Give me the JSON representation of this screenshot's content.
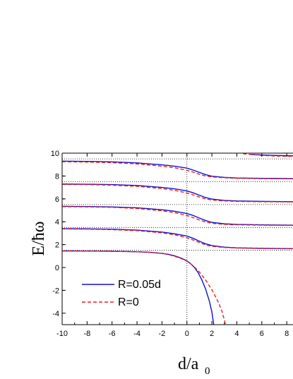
{
  "chart_data": {
    "type": "line",
    "ylabel": "E/ħω",
    "xlabel_main": "d/a",
    "xlabel_sub": "0",
    "xlim": [
      -10,
      8.5
    ],
    "ylim": [
      -5,
      10
    ],
    "x_ticks": [
      -10,
      -8,
      -6,
      -4,
      -2,
      0,
      2,
      4,
      6,
      8
    ],
    "y_ticks": [
      -4,
      -2,
      0,
      2,
      4,
      6,
      8,
      10
    ],
    "reference_lines": {
      "vertical_x": 0,
      "horizontal_y": [
        1.5,
        3.5,
        5.5,
        7.5,
        9.5
      ],
      "style": "dotted"
    },
    "series": [
      {
        "name": "R=0.05d",
        "color": "#1010d0",
        "dash": "solid",
        "branches": [
          [
            [
              -10,
              1.45
            ],
            [
              -8,
              1.44
            ],
            [
              -6,
              1.42
            ],
            [
              -4,
              1.38
            ],
            [
              -3,
              1.33
            ],
            [
              -2,
              1.24
            ],
            [
              -1.5,
              1.15
            ],
            [
              -1,
              1.02
            ],
            [
              -0.5,
              0.84
            ],
            [
              0,
              0.58
            ],
            [
              0.3,
              0.33
            ],
            [
              0.6,
              0.0
            ],
            [
              0.9,
              -0.45
            ],
            [
              1.2,
              -1.1
            ],
            [
              1.5,
              -1.9
            ],
            [
              1.8,
              -2.95
            ],
            [
              2.0,
              -3.9
            ],
            [
              2.15,
              -5.0
            ]
          ],
          [
            [
              -10,
              3.4
            ],
            [
              -8,
              3.38
            ],
            [
              -6,
              3.35
            ],
            [
              -4,
              3.27
            ],
            [
              -2,
              3.1
            ],
            [
              -1,
              2.95
            ],
            [
              0,
              2.75
            ],
            [
              0.5,
              2.55
            ],
            [
              1,
              2.3
            ],
            [
              1.5,
              2.07
            ],
            [
              2,
              1.92
            ],
            [
              3,
              1.78
            ],
            [
              4,
              1.72
            ],
            [
              6,
              1.68
            ],
            [
              8.5,
              1.65
            ]
          ],
          [
            [
              -10,
              5.35
            ],
            [
              -8,
              5.33
            ],
            [
              -6,
              5.3
            ],
            [
              -4,
              5.22
            ],
            [
              -2,
              5.05
            ],
            [
              -1,
              4.92
            ],
            [
              0,
              4.72
            ],
            [
              0.5,
              4.55
            ],
            [
              1,
              4.32
            ],
            [
              1.5,
              4.1
            ],
            [
              2,
              3.95
            ],
            [
              3,
              3.82
            ],
            [
              4,
              3.77
            ],
            [
              6,
              3.73
            ],
            [
              8.5,
              3.7
            ]
          ],
          [
            [
              -10,
              7.3
            ],
            [
              -8,
              7.28
            ],
            [
              -6,
              7.25
            ],
            [
              -4,
              7.17
            ],
            [
              -2,
              7.0
            ],
            [
              -1,
              6.88
            ],
            [
              0,
              6.7
            ],
            [
              0.5,
              6.53
            ],
            [
              1,
              6.32
            ],
            [
              1.5,
              6.12
            ],
            [
              2,
              5.98
            ],
            [
              3,
              5.87
            ],
            [
              4,
              5.82
            ],
            [
              6,
              5.78
            ],
            [
              8.5,
              5.75
            ]
          ],
          [
            [
              -10,
              9.3
            ],
            [
              -8,
              9.28
            ],
            [
              -6,
              9.24
            ],
            [
              -4,
              9.15
            ],
            [
              -2,
              8.98
            ],
            [
              -1,
              8.86
            ],
            [
              0,
              8.69
            ],
            [
              0.5,
              8.52
            ],
            [
              1,
              8.32
            ],
            [
              1.5,
              8.12
            ],
            [
              2,
              7.98
            ],
            [
              3,
              7.88
            ],
            [
              4,
              7.83
            ],
            [
              6,
              7.8
            ],
            [
              8.5,
              7.77
            ]
          ],
          [
            [
              5,
              9.9
            ],
            [
              6,
              9.84
            ],
            [
              7,
              9.8
            ],
            [
              8.5,
              9.77
            ]
          ]
        ]
      },
      {
        "name": "R=0",
        "color": "#e82020",
        "dash": "dashed",
        "branches": [
          [
            [
              -10,
              1.45
            ],
            [
              -8,
              1.44
            ],
            [
              -6,
              1.42
            ],
            [
              -4,
              1.38
            ],
            [
              -3,
              1.32
            ],
            [
              -2,
              1.23
            ],
            [
              -1.5,
              1.13
            ],
            [
              -1,
              0.98
            ],
            [
              -0.5,
              0.8
            ],
            [
              0,
              0.55
            ],
            [
              0.5,
              0.15
            ],
            [
              1,
              -0.4
            ],
            [
              1.5,
              -1.1
            ],
            [
              2,
              -1.95
            ],
            [
              2.5,
              -3.0
            ],
            [
              2.8,
              -3.8
            ],
            [
              3.1,
              -5.0
            ]
          ],
          [
            [
              -10,
              3.37
            ],
            [
              -8,
              3.35
            ],
            [
              -6,
              3.31
            ],
            [
              -4,
              3.22
            ],
            [
              -2,
              3.03
            ],
            [
              -1,
              2.86
            ],
            [
              0,
              2.6
            ],
            [
              0.5,
              2.4
            ],
            [
              1,
              2.18
            ],
            [
              1.5,
              1.98
            ],
            [
              2,
              1.85
            ],
            [
              3,
              1.75
            ],
            [
              4,
              1.7
            ],
            [
              6,
              1.66
            ],
            [
              8.5,
              1.63
            ]
          ],
          [
            [
              -10,
              5.32
            ],
            [
              -8,
              5.3
            ],
            [
              -6,
              5.26
            ],
            [
              -4,
              5.16
            ],
            [
              -2,
              4.96
            ],
            [
              -1,
              4.8
            ],
            [
              0,
              4.55
            ],
            [
              0.5,
              4.36
            ],
            [
              1,
              4.15
            ],
            [
              1.5,
              3.97
            ],
            [
              2,
              3.86
            ],
            [
              3,
              3.77
            ],
            [
              4,
              3.73
            ],
            [
              6,
              3.7
            ],
            [
              8.5,
              3.68
            ]
          ],
          [
            [
              -10,
              7.27
            ],
            [
              -8,
              7.25
            ],
            [
              -6,
              7.2
            ],
            [
              -4,
              7.1
            ],
            [
              -2,
              6.9
            ],
            [
              -1,
              6.75
            ],
            [
              0,
              6.52
            ],
            [
              0.5,
              6.35
            ],
            [
              1,
              6.16
            ],
            [
              1.5,
              6.0
            ],
            [
              2,
              5.9
            ],
            [
              3,
              5.82
            ],
            [
              4,
              5.78
            ],
            [
              6,
              5.75
            ],
            [
              8.5,
              5.73
            ]
          ],
          [
            [
              -10,
              9.25
            ],
            [
              -8,
              9.22
            ],
            [
              -6,
              9.17
            ],
            [
              -4,
              9.06
            ],
            [
              -2,
              8.86
            ],
            [
              -1,
              8.72
            ],
            [
              0,
              8.5
            ],
            [
              0.5,
              8.34
            ],
            [
              1,
              8.15
            ],
            [
              1.5,
              8.0
            ],
            [
              2,
              7.92
            ],
            [
              3,
              7.85
            ],
            [
              4,
              7.8
            ],
            [
              6,
              7.77
            ],
            [
              8.5,
              7.75
            ]
          ],
          [
            [
              4.5,
              9.95
            ],
            [
              5,
              9.9
            ],
            [
              6,
              9.8
            ],
            [
              7,
              9.75
            ],
            [
              8.5,
              9.72
            ]
          ]
        ]
      }
    ],
    "legend_position": "lower-left"
  }
}
